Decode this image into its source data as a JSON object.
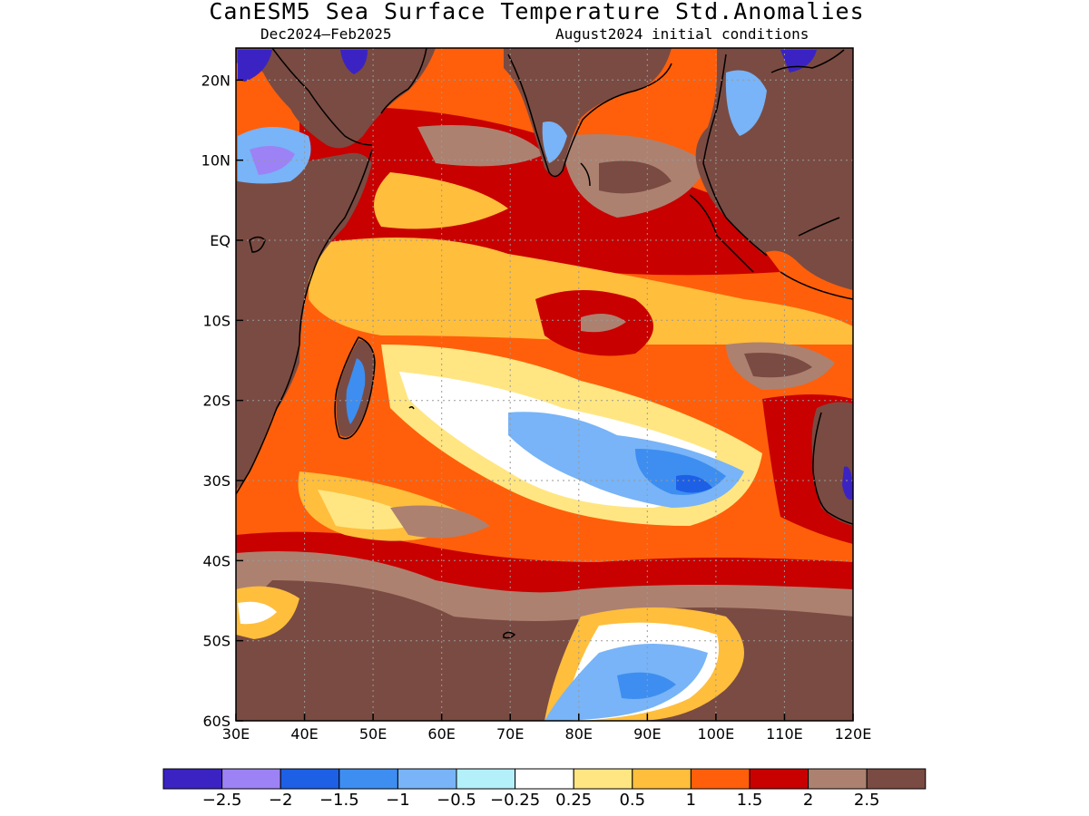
{
  "title": "CanESM5 Sea Surface Temperature Std.Anomalies",
  "period": "Dec2024–Feb2025",
  "initial_conditions": "August2024 initial conditions",
  "map": {
    "lon_range": [
      30,
      120
    ],
    "lat_range": [
      -60,
      24
    ],
    "lon_ticks": [
      {
        "value": 30,
        "label": "30E"
      },
      {
        "value": 40,
        "label": "40E"
      },
      {
        "value": 50,
        "label": "50E"
      },
      {
        "value": 60,
        "label": "60E"
      },
      {
        "value": 70,
        "label": "70E"
      },
      {
        "value": 80,
        "label": "80E"
      },
      {
        "value": 90,
        "label": "90E"
      },
      {
        "value": 100,
        "label": "100E"
      },
      {
        "value": 110,
        "label": "110E"
      },
      {
        "value": 120,
        "label": "120E"
      }
    ],
    "lat_ticks": [
      {
        "value": 20,
        "label": "20N"
      },
      {
        "value": 10,
        "label": "10N"
      },
      {
        "value": 0,
        "label": "EQ"
      },
      {
        "value": -10,
        "label": "10S"
      },
      {
        "value": -20,
        "label": "20S"
      },
      {
        "value": -30,
        "label": "30S"
      },
      {
        "value": -40,
        "label": "40S"
      },
      {
        "value": -50,
        "label": "50S"
      },
      {
        "value": -60,
        "label": "60S"
      }
    ],
    "gridlines": "dotted"
  },
  "colorbar": {
    "colors": [
      "#3b23c3",
      "#9c82f5",
      "#1d60e6",
      "#3d8ef0",
      "#78b4f7",
      "#b3f0fa",
      "#ffffff",
      "#ffe682",
      "#ffbe3c",
      "#ff5f0a",
      "#c80000",
      "#ad8170",
      "#7a4b42"
    ],
    "labels": [
      "−2.5",
      "−2",
      "−1.5",
      "−1",
      "−0.5",
      "−0.25",
      "0.25",
      "0.5",
      "1",
      "1.5",
      "2",
      "2.5"
    ]
  },
  "colors": {
    "land": "#7a4b42",
    "coastline": "#000000"
  }
}
